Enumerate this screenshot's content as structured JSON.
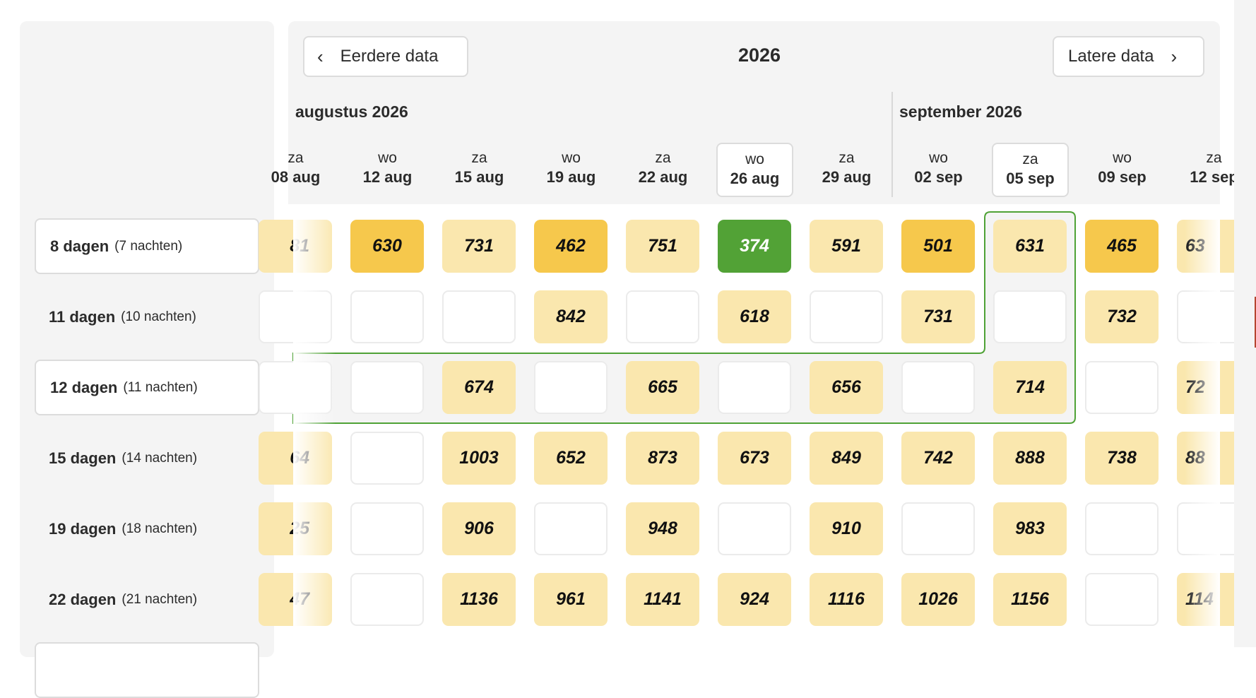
{
  "nav": {
    "prev_label": "Eerdere data",
    "next_label": "Latere data",
    "year": "2026"
  },
  "months": [
    "augustus 2026",
    "september 2026"
  ],
  "columns": [
    {
      "day": "za",
      "date": "08 aug"
    },
    {
      "day": "wo",
      "date": "12 aug"
    },
    {
      "day": "za",
      "date": "15 aug"
    },
    {
      "day": "wo",
      "date": "19 aug"
    },
    {
      "day": "za",
      "date": "22 aug"
    },
    {
      "day": "wo",
      "date": "26 aug",
      "selected": true
    },
    {
      "day": "za",
      "date": "29 aug"
    },
    {
      "day": "wo",
      "date": "02 sep"
    },
    {
      "day": "za",
      "date": "05 sep",
      "selected": true
    },
    {
      "day": "wo",
      "date": "09 sep"
    },
    {
      "day": "za",
      "date": "12 sep"
    }
  ],
  "durations": [
    {
      "days": "8 dagen",
      "nights": "(7 nachten)",
      "boxed": true
    },
    {
      "days": "11 dagen",
      "nights": "(10 nachten)",
      "boxed": false
    },
    {
      "days": "12 dagen",
      "nights": "(11 nachten)",
      "boxed": true
    },
    {
      "days": "15 dagen",
      "nights": "(14 nachten)",
      "boxed": false
    },
    {
      "days": "19 dagen",
      "nights": "(18 nachten)",
      "boxed": false
    },
    {
      "days": "22 dagen",
      "nights": "(21 nachten)",
      "boxed": false
    }
  ],
  "price_levels": {
    "light": "#fae7ae",
    "medium": "#f6c84c",
    "cheapest": "#52a236"
  },
  "highlight": {
    "row": "12 dagen",
    "column": "05 sep",
    "color": "#4fa236"
  },
  "grid": [
    [
      [
        "81",
        "light"
      ],
      [
        "630",
        "medium"
      ],
      [
        "731",
        "light"
      ],
      [
        "462",
        "medium"
      ],
      [
        "751",
        "light"
      ],
      [
        "374",
        "cheapest"
      ],
      [
        "591",
        "light"
      ],
      [
        "501",
        "medium"
      ],
      [
        "631",
        "light"
      ],
      [
        "465",
        "medium"
      ],
      [
        "63",
        "light"
      ]
    ],
    [
      [
        "",
        ""
      ],
      [
        "",
        ""
      ],
      [
        "",
        ""
      ],
      [
        "842",
        "light"
      ],
      [
        "",
        ""
      ],
      [
        "618",
        "light"
      ],
      [
        "",
        ""
      ],
      [
        "731",
        "light"
      ],
      [
        "",
        ""
      ],
      [
        "732",
        "light"
      ],
      [
        "",
        ""
      ]
    ],
    [
      [
        "",
        ""
      ],
      [
        "",
        ""
      ],
      [
        "674",
        "light"
      ],
      [
        "",
        ""
      ],
      [
        "665",
        "light"
      ],
      [
        "",
        ""
      ],
      [
        "656",
        "light"
      ],
      [
        "",
        ""
      ],
      [
        "714",
        "light"
      ],
      [
        "",
        ""
      ],
      [
        "72",
        "light"
      ]
    ],
    [
      [
        "64",
        "light"
      ],
      [
        "",
        ""
      ],
      [
        "1003",
        "light"
      ],
      [
        "652",
        "light"
      ],
      [
        "873",
        "light"
      ],
      [
        "673",
        "light"
      ],
      [
        "849",
        "light"
      ],
      [
        "742",
        "light"
      ],
      [
        "888",
        "light"
      ],
      [
        "738",
        "light"
      ],
      [
        "88",
        "light"
      ]
    ],
    [
      [
        "25",
        "light"
      ],
      [
        "",
        ""
      ],
      [
        "906",
        "light"
      ],
      [
        "",
        ""
      ],
      [
        "948",
        "light"
      ],
      [
        "",
        ""
      ],
      [
        "910",
        "light"
      ],
      [
        "",
        ""
      ],
      [
        "983",
        "light"
      ],
      [
        "",
        ""
      ],
      [
        "",
        ""
      ]
    ],
    [
      [
        "47",
        "light"
      ],
      [
        "",
        ""
      ],
      [
        "1136",
        "light"
      ],
      [
        "961",
        "light"
      ],
      [
        "1141",
        "light"
      ],
      [
        "924",
        "light"
      ],
      [
        "1116",
        "light"
      ],
      [
        "1026",
        "light"
      ],
      [
        "1156",
        "light"
      ],
      [
        "",
        ""
      ],
      [
        "114",
        "light"
      ]
    ]
  ]
}
